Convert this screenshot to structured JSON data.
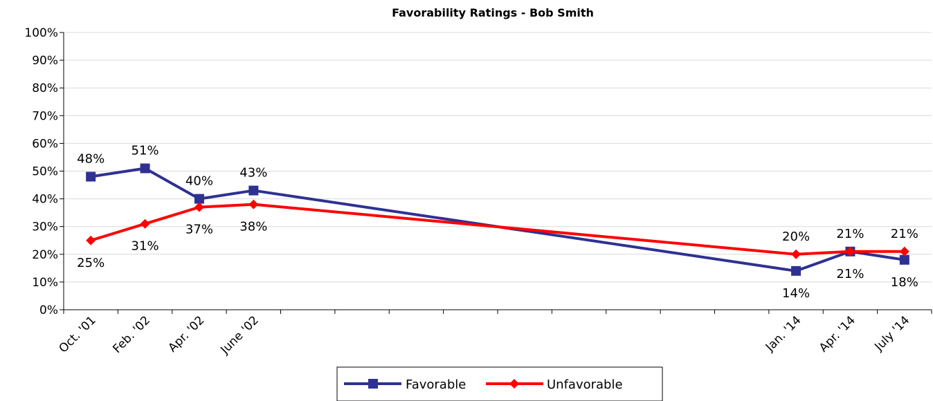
{
  "chart_data": {
    "type": "line",
    "title": "Favorability Ratings - Bob Smith",
    "xlabel": "",
    "ylabel": "",
    "ylim": [
      0,
      100
    ],
    "yticks": [
      "0%",
      "10%",
      "20%",
      "30%",
      "40%",
      "50%",
      "60%",
      "70%",
      "80%",
      "90%",
      "100%"
    ],
    "category_slots": 16,
    "categories": [
      {
        "label": "Oct. '01",
        "slot": 0
      },
      {
        "label": "Feb. '02",
        "slot": 1
      },
      {
        "label": "Apr. '02",
        "slot": 2
      },
      {
        "label": "June '02",
        "slot": 3
      },
      {
        "label": "Jan. '14",
        "slot": 13
      },
      {
        "label": "Apr. '14",
        "slot": 14
      },
      {
        "label": "July '14",
        "slot": 15
      }
    ],
    "series": [
      {
        "name": "Favorable",
        "color": "#2e3192",
        "marker": "square",
        "values": [
          48,
          51,
          40,
          43,
          14,
          21,
          18
        ],
        "labels": [
          "48%",
          "51%",
          "40%",
          "43%",
          "14%",
          "21%",
          "18%"
        ],
        "label_pos": [
          "above",
          "above",
          "above",
          "above",
          "below",
          "below",
          "below"
        ]
      },
      {
        "name": "Unfavorable",
        "color": "#ff0000",
        "marker": "diamond",
        "values": [
          25,
          31,
          37,
          38,
          20,
          21,
          21
        ],
        "labels": [
          "25%",
          "31%",
          "37%",
          "38%",
          "20%",
          "21%",
          "21%"
        ],
        "label_pos": [
          "below",
          "below",
          "below",
          "below",
          "above",
          "above",
          "above"
        ]
      }
    ],
    "legend": "bottom",
    "grid": true
  }
}
